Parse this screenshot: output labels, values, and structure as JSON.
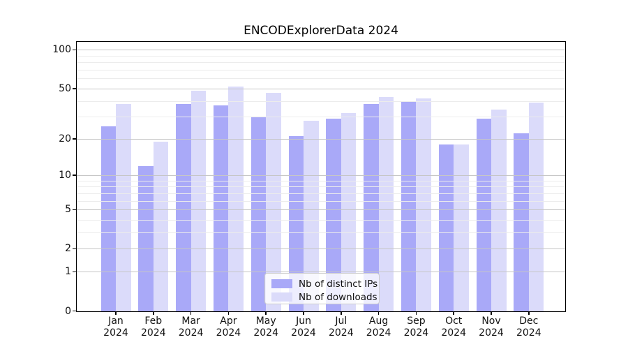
{
  "figure": {
    "title": "ENCODExplorerData 2024"
  },
  "chart_data": {
    "type": "bar",
    "title": "ENCODExplorerData 2024",
    "xlabel": "",
    "ylabel": "",
    "categories": [
      "Jan",
      "Feb",
      "Mar",
      "Apr",
      "May",
      "Jun",
      "Jul",
      "Aug",
      "Sep",
      "Oct",
      "Nov",
      "Dec"
    ],
    "category_year": "2024",
    "series": [
      {
        "name": "Nb of distinct IPs",
        "color": "#a9a9f8",
        "values": [
          25,
          12,
          38,
          37,
          30,
          21,
          29,
          38,
          40,
          18,
          29,
          22
        ]
      },
      {
        "name": "Nb of downloads",
        "color": "#dbdbfa",
        "values": [
          38,
          19,
          48,
          52,
          46,
          28,
          32,
          43,
          42,
          18,
          34,
          39
        ]
      }
    ],
    "yscale": "log(1+x)",
    "ylim": [
      0,
      114
    ],
    "yticks": [
      100,
      50,
      20,
      10,
      5,
      2,
      1,
      0
    ],
    "ytick_labels": [
      "100",
      "50",
      "20",
      "10",
      "5",
      "2",
      "1",
      "0"
    ],
    "minor_gridlines": [
      3,
      4,
      6,
      7,
      8,
      9,
      30,
      40,
      60,
      70,
      80,
      90
    ],
    "grid": "on",
    "legend_position": "lower-center",
    "legend": [
      "Nb of distinct IPs",
      "Nb of downloads"
    ]
  }
}
